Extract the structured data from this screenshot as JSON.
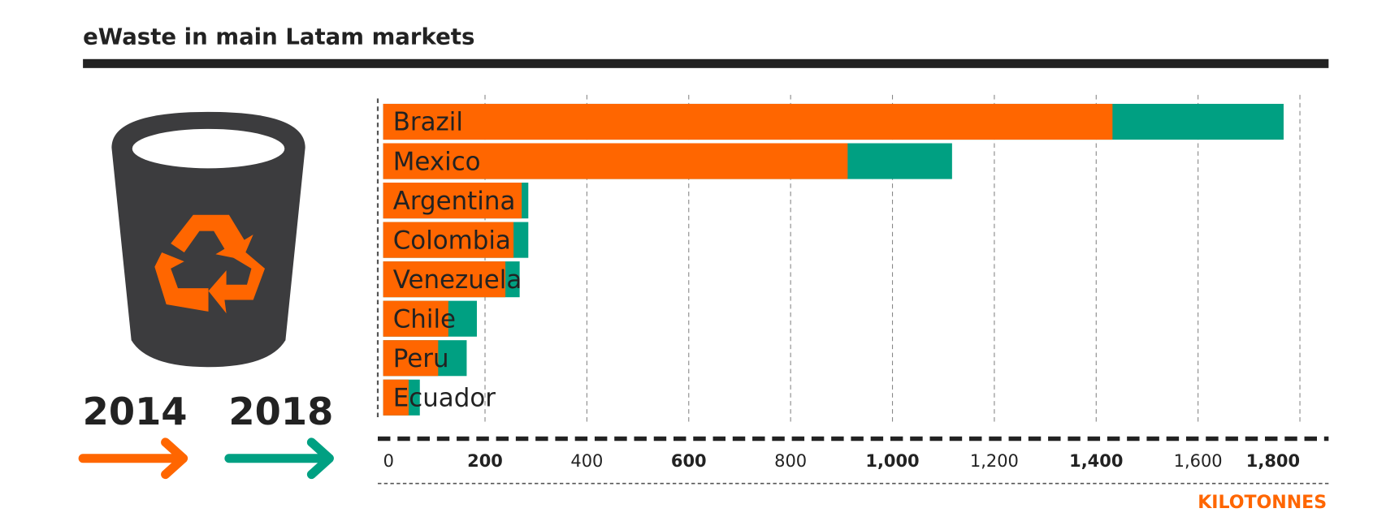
{
  "chart_data": {
    "type": "bar",
    "title": "eWaste in main Latam markets",
    "categories": [
      "Brazil",
      "Mexico",
      "Argentina",
      "Colombia",
      "Venezuela",
      "Chile",
      "Peru",
      "Ecuador"
    ],
    "series": [
      {
        "name": "2014",
        "color": "#ff6600",
        "values": [
          1432,
          912,
          272,
          256,
          240,
          128,
          108,
          50
        ]
      },
      {
        "name": "2018",
        "color": "#00a082",
        "values": [
          1768,
          1117,
          285,
          285,
          268,
          184,
          164,
          72
        ]
      }
    ],
    "xlim": [
      0,
      1800
    ],
    "xticks": [
      0,
      200,
      400,
      600,
      800,
      {
        "value": 1000,
        "label": "1,000"
      },
      {
        "value": 1200,
        "label": "1,200"
      },
      {
        "value": 1400,
        "label": "1,400"
      },
      {
        "value": 1600,
        "label": "1,600"
      },
      {
        "value": 1800,
        "label": "1,800"
      }
    ],
    "x_label": "KILOTONNES",
    "grid": true
  }
}
